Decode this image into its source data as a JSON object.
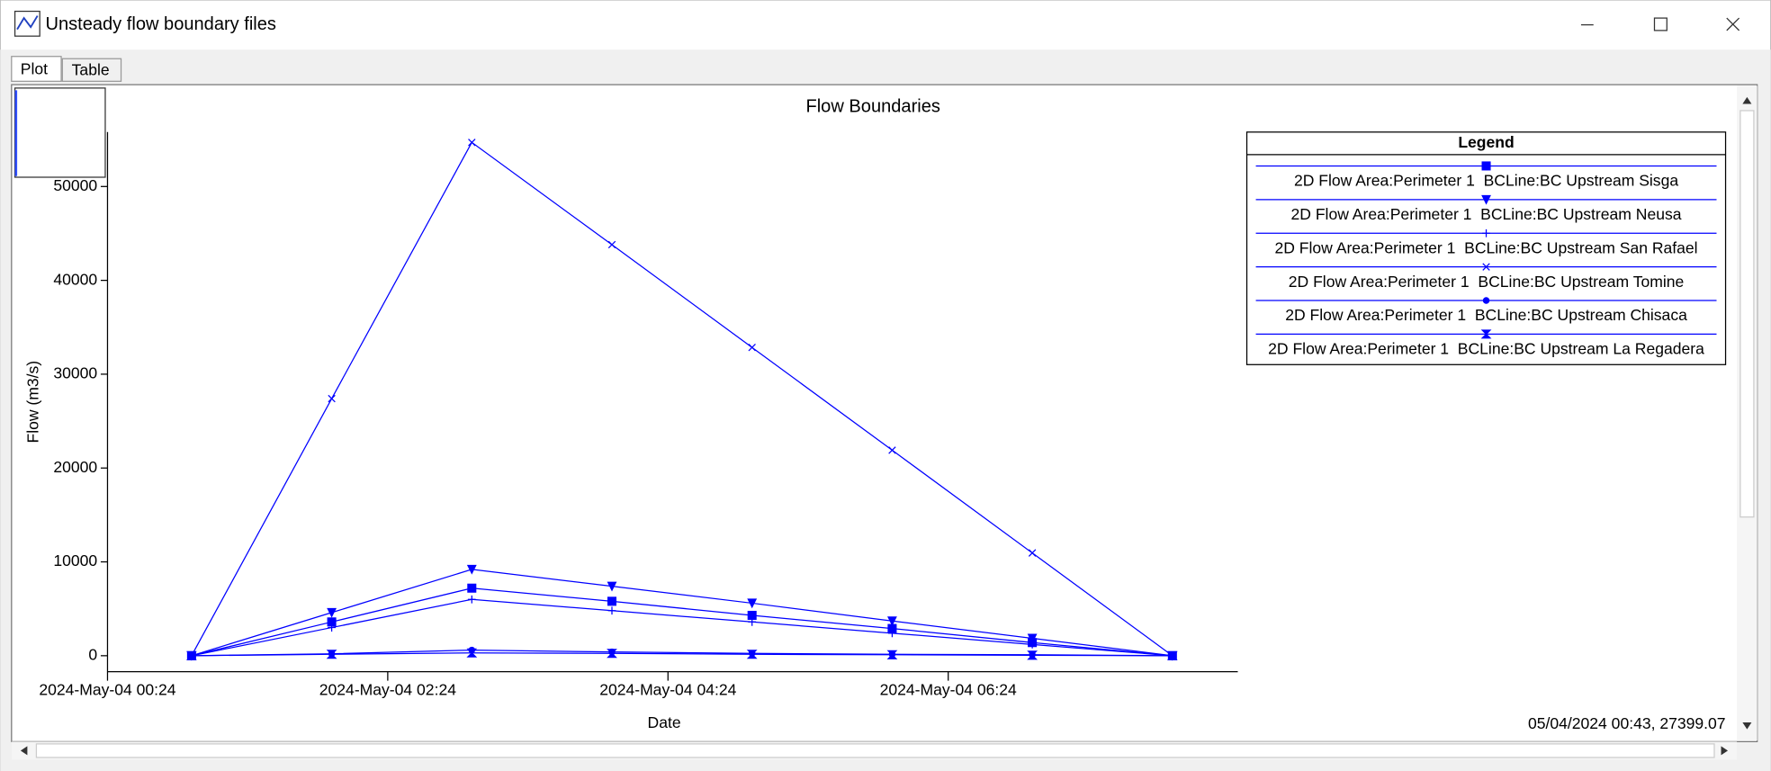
{
  "window_title": "Unsteady flow boundary files",
  "tabs": [
    "Plot",
    "Table"
  ],
  "status": "05/04/2024 00:43, 27399.07",
  "chart_data": {
    "type": "line",
    "title": "Flow Boundaries",
    "x_label": "Date",
    "y_label": "Flow (m3/s)",
    "legend_title": "Legend",
    "legend": "upper right",
    "x": [
      "2024-05-04T01:00",
      "2024-05-04T02:00",
      "2024-05-04T03:00",
      "2024-05-04T04:00",
      "2024-05-04T05:00",
      "2024-05-04T06:00",
      "2024-05-04T07:00",
      "2024-05-04T08:00"
    ],
    "xlim": [
      "2024-05-04T00:24",
      "2024-05-04T08:28"
    ],
    "xticks": [
      {
        "value": "2024-05-04T00:24",
        "label": "2024-May-04 00:24"
      },
      {
        "value": "2024-05-04T02:24",
        "label": "2024-May-04 02:24"
      },
      {
        "value": "2024-05-04T04:24",
        "label": "2024-May-04 04:24"
      },
      {
        "value": "2024-05-04T06:24",
        "label": "2024-May-04 06:24"
      }
    ],
    "ylim": [
      -1700,
      55800
    ],
    "yticks": [
      0,
      10000,
      20000,
      30000,
      40000,
      50000
    ],
    "series": [
      {
        "name": "2D Flow Area:Perimeter 1  BCLine:BC Upstream Sisga",
        "color": "#0000ff",
        "marker": "square",
        "values": [
          0,
          3600,
          7200,
          5800,
          4300,
          2900,
          1400,
          0
        ]
      },
      {
        "name": "2D Flow Area:Perimeter 1  BCLine:BC Upstream Neusa",
        "color": "#0000ff",
        "marker": "triangle-down",
        "values": [
          0,
          4600,
          9200,
          7400,
          5600,
          3700,
          1850,
          0
        ]
      },
      {
        "name": "2D Flow Area:Perimeter 1  BCLine:BC Upstream San Rafael",
        "color": "#0000ff",
        "marker": "plus",
        "values": [
          0,
          3000,
          6000,
          4800,
          3600,
          2400,
          1200,
          0
        ]
      },
      {
        "name": "2D Flow Area:Perimeter 1  BCLine:BC Upstream Tomine",
        "color": "#0000ff",
        "marker": "x",
        "values": [
          0,
          27399,
          54700,
          43800,
          32850,
          21900,
          10950,
          0
        ]
      },
      {
        "name": "2D Flow Area:Perimeter 1  BCLine:BC Upstream Chisaca",
        "color": "#0000ff",
        "marker": "dot",
        "values": [
          0,
          200,
          600,
          400,
          250,
          150,
          100,
          0
        ]
      },
      {
        "name": "2D Flow Area:Perimeter 1  BCLine:BC Upstream La Regadera",
        "color": "#0000ff",
        "marker": "hourglass",
        "values": [
          0,
          150,
          300,
          250,
          150,
          100,
          50,
          0
        ]
      }
    ]
  }
}
